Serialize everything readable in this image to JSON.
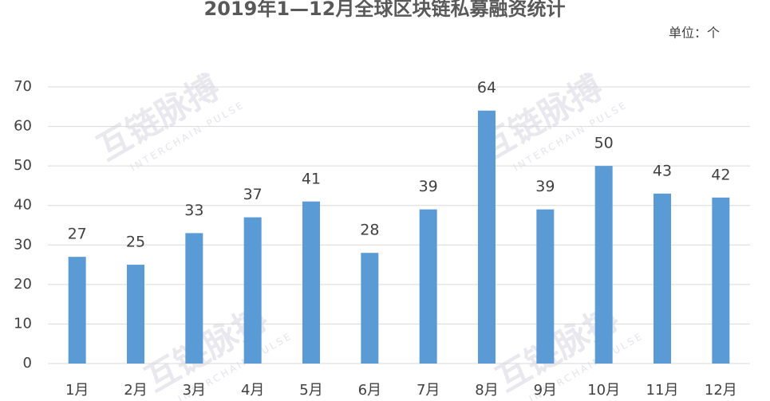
{
  "chart_data": {
    "type": "bar",
    "title": "2019年1—12月全球区块链私募融资统计",
    "unit": "单位：个",
    "watermark": "互链脉搏",
    "watermark_sub": "INTERCHAIN PULSE",
    "categories": [
      "1月",
      "2月",
      "3月",
      "4月",
      "5月",
      "6月",
      "7月",
      "8月",
      "9月",
      "10月",
      "11月",
      "12月"
    ],
    "values": [
      27,
      25,
      33,
      37,
      41,
      28,
      39,
      64,
      39,
      50,
      43,
      42
    ],
    "color": "#5b9bd5",
    "ylim": [
      0,
      70
    ],
    "yticks": [
      0,
      10,
      20,
      30,
      40,
      50,
      60,
      70
    ],
    "grid": true
  }
}
